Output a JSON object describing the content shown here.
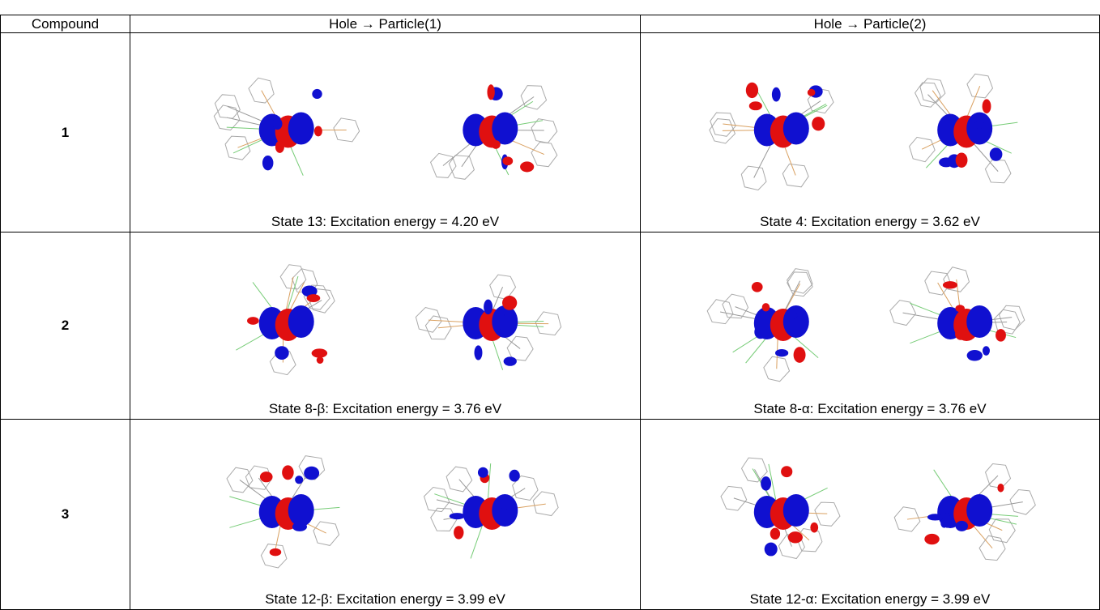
{
  "table": {
    "header": [
      "Compound",
      "Hole → Particle(1)",
      "Hole → Particle(2)"
    ],
    "rows": [
      {
        "compound": "1",
        "cells": [
          "State 13: Excitation energy = 4.20 eV",
          "State 4: Excitation energy = 3.62 eV"
        ]
      },
      {
        "compound": "2",
        "cells": [
          "State 8-β: Excitation energy = 3.76 eV",
          "State 8-α: Excitation energy = 3.76 eV"
        ]
      },
      {
        "compound": "3",
        "cells": [
          "State 12-β: Excitation energy = 3.99 eV",
          "State 12-α: Excitation energy = 3.99 eV"
        ]
      }
    ]
  }
}
